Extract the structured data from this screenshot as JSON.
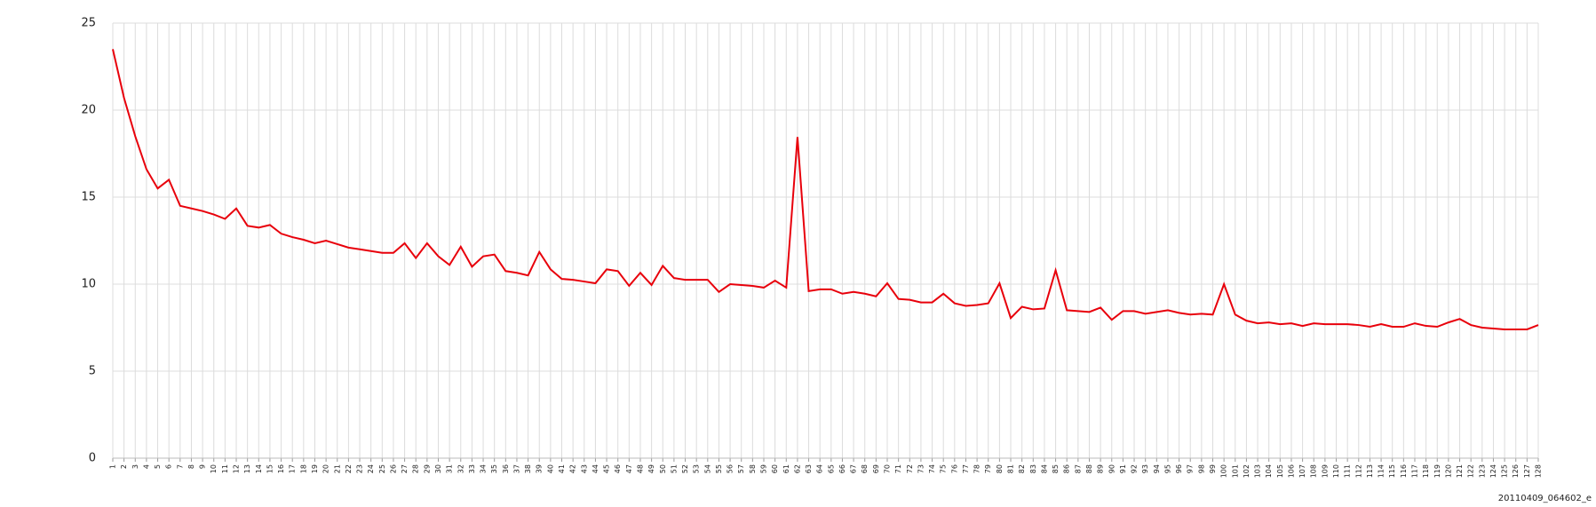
{
  "chart_data": {
    "type": "line",
    "categories": [
      "1",
      "2",
      "3",
      "4",
      "5",
      "6",
      "7",
      "8",
      "9",
      "10",
      "11",
      "12",
      "13",
      "14",
      "15",
      "16",
      "17",
      "18",
      "19",
      "20",
      "21",
      "22",
      "23",
      "24",
      "25",
      "26",
      "27",
      "28",
      "29",
      "30",
      "31",
      "32",
      "33",
      "34",
      "35",
      "36",
      "37",
      "38",
      "39",
      "40",
      "41",
      "42",
      "43",
      "44",
      "45",
      "46",
      "47",
      "48",
      "49",
      "50",
      "51",
      "52",
      "53",
      "54",
      "55",
      "56",
      "57",
      "58",
      "59",
      "60",
      "61",
      "62",
      "63",
      "64",
      "65",
      "66",
      "67",
      "68",
      "69",
      "70",
      "71",
      "72",
      "73",
      "74",
      "75",
      "76",
      "77",
      "78",
      "79",
      "80",
      "81",
      "82",
      "83",
      "84",
      "85",
      "86",
      "87",
      "88",
      "89",
      "90",
      "91",
      "92",
      "93",
      "94",
      "95",
      "96",
      "97",
      "98",
      "99",
      "100",
      "101",
      "102",
      "103",
      "104",
      "105",
      "106",
      "107",
      "108",
      "109",
      "110",
      "111",
      "112",
      "113",
      "114",
      "115",
      "116",
      "117",
      "118",
      "119",
      "120",
      "121",
      "122",
      "123",
      "124",
      "125",
      "126",
      "127",
      "128"
    ],
    "values": [
      23.5,
      20.7,
      18.5,
      16.6,
      15.5,
      16.0,
      14.5,
      14.35,
      14.2,
      14.0,
      13.75,
      14.35,
      13.35,
      13.25,
      13.4,
      12.9,
      12.7,
      12.55,
      12.35,
      12.5,
      12.3,
      12.1,
      12.0,
      11.9,
      11.8,
      11.8,
      12.35,
      11.5,
      12.35,
      11.6,
      11.1,
      12.15,
      11.0,
      11.6,
      11.7,
      10.75,
      10.65,
      10.5,
      11.85,
      10.85,
      10.3,
      10.25,
      10.15,
      10.05,
      10.85,
      10.75,
      9.9,
      10.65,
      9.95,
      11.05,
      10.35,
      10.25,
      10.25,
      10.25,
      9.55,
      10.0,
      9.95,
      9.9,
      9.8,
      10.2,
      9.8,
      18.45,
      9.6,
      9.7,
      9.7,
      9.45,
      9.55,
      9.45,
      9.3,
      10.05,
      9.15,
      9.1,
      8.95,
      8.95,
      9.45,
      8.9,
      8.75,
      8.8,
      8.9,
      10.05,
      8.05,
      8.7,
      8.55,
      8.6,
      10.8,
      8.5,
      8.45,
      8.4,
      8.65,
      7.95,
      8.45,
      8.45,
      8.3,
      8.4,
      8.5,
      8.35,
      8.25,
      8.3,
      8.25,
      10.0,
      8.25,
      7.9,
      7.75,
      7.8,
      7.7,
      7.75,
      7.6,
      7.75,
      7.7,
      7.7,
      7.7,
      7.65,
      7.55,
      7.7,
      7.55,
      7.55,
      7.75,
      7.6,
      7.55,
      7.8,
      8.0,
      7.65,
      7.5,
      7.45,
      7.4,
      7.4,
      7.4,
      7.65
    ],
    "color": "#e8000b",
    "ylim": [
      0,
      25
    ],
    "yticks": [
      0,
      5,
      10,
      15,
      20,
      25
    ],
    "grid": true,
    "footer": "20110409_064602_e"
  }
}
